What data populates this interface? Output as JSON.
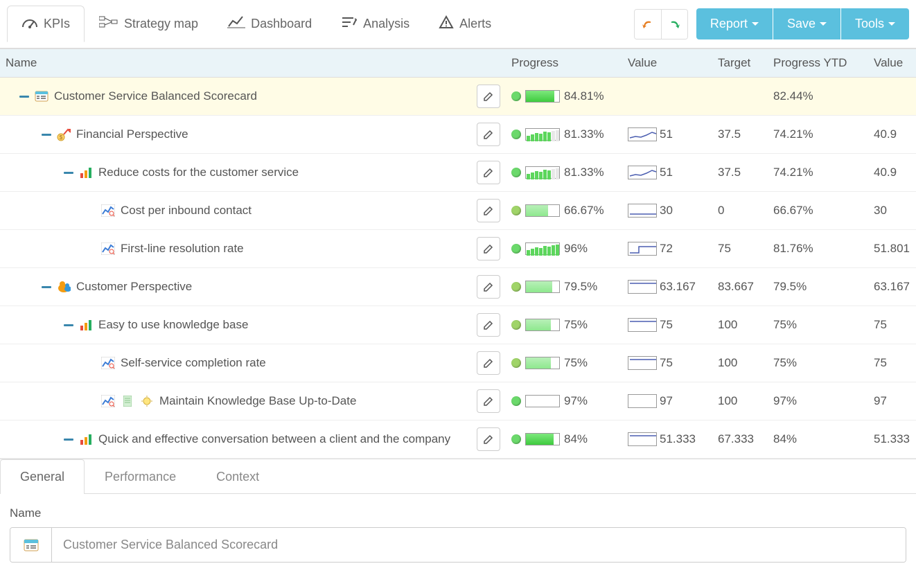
{
  "colors": {
    "accent": "#5bc0de",
    "header_bg": "#eaf4f8",
    "root_row_bg": "#fffce6",
    "status_green": "#4ad24a",
    "status_green_dot": "#6bd96b",
    "spark_line": "#4a5db0",
    "undo_arrow": "#e67e22",
    "redo_arrow": "#27ae60"
  },
  "toolbar": {
    "tabs": [
      {
        "label": "KPIs",
        "active": true
      },
      {
        "label": "Strategy map",
        "active": false
      },
      {
        "label": "Dashboard",
        "active": false
      },
      {
        "label": "Analysis",
        "active": false
      },
      {
        "label": "Alerts",
        "active": false
      }
    ],
    "actions": [
      "Report",
      "Save",
      "Tools"
    ]
  },
  "table": {
    "columns": [
      "Name",
      "",
      "Progress",
      "Value",
      "Target",
      "Progress YTD",
      "Value"
    ],
    "rows": [
      {
        "indent": 0,
        "icon": "scorecard",
        "collapsible": true,
        "root": true,
        "name": "Customer Service Balanced Scorecard",
        "progress": "84.81%",
        "progress_fill": 85,
        "dot": "#6bd96b",
        "bar_style": "solid",
        "value": "",
        "spark": "",
        "target": "",
        "ytd": "82.44%",
        "value2": ""
      },
      {
        "indent": 1,
        "icon": "perspective-finance",
        "collapsible": true,
        "name": "Financial Perspective",
        "progress": "81.33%",
        "progress_fill": 81,
        "dot": "#6bd96b",
        "bar_style": "bars",
        "value": "51",
        "spark": "line",
        "target": "37.5",
        "ytd": "74.21%",
        "value2": "40.9"
      },
      {
        "indent": 2,
        "icon": "goal",
        "collapsible": true,
        "name": "Reduce costs for the customer service",
        "progress": "81.33%",
        "progress_fill": 81,
        "dot": "#6bd96b",
        "bar_style": "bars",
        "value": "51",
        "spark": "line",
        "target": "37.5",
        "ytd": "74.21%",
        "value2": "40.9"
      },
      {
        "indent": 3,
        "icon": "kpi",
        "name": "Cost per inbound contact",
        "progress": "66.67%",
        "progress_fill": 67,
        "dot": "#a0d468",
        "bar_style": "solid-light",
        "value": "30",
        "spark": "flat",
        "target": "0",
        "ytd": "66.67%",
        "value2": "30"
      },
      {
        "indent": 3,
        "icon": "kpi",
        "name": "First-line resolution rate",
        "progress": "96%",
        "progress_fill": 96,
        "dot": "#6bd96b",
        "bar_style": "bars",
        "value": "72",
        "spark": "step",
        "target": "75",
        "ytd": "81.76%",
        "value2": "51.801"
      },
      {
        "indent": 1,
        "icon": "perspective-customer",
        "collapsible": true,
        "name": "Customer Perspective",
        "progress": "79.5%",
        "progress_fill": 80,
        "dot": "#a0d468",
        "bar_style": "solid-light",
        "value": "63.167",
        "spark": "flat-top",
        "target": "83.667",
        "ytd": "79.5%",
        "value2": "63.167"
      },
      {
        "indent": 2,
        "icon": "goal",
        "collapsible": true,
        "name": "Easy to use knowledge base",
        "progress": "75%",
        "progress_fill": 75,
        "dot": "#a0d468",
        "bar_style": "solid-light",
        "value": "75",
        "spark": "flat-top",
        "target": "100",
        "ytd": "75%",
        "value2": "75"
      },
      {
        "indent": 3,
        "icon": "kpi",
        "name": "Self-service completion rate",
        "progress": "75%",
        "progress_fill": 75,
        "dot": "#a0d468",
        "bar_style": "solid-light",
        "value": "75",
        "spark": "flat-top",
        "target": "100",
        "ytd": "75%",
        "value2": "75"
      },
      {
        "indent": 3,
        "icon": "kpi",
        "extras": [
          "doc",
          "bulb"
        ],
        "name": "Maintain Knowledge Base Up-to-Date",
        "progress": "97%",
        "progress_fill": 0,
        "dot": "#6bd96b",
        "bar_style": "empty",
        "value": "97",
        "spark": "empty",
        "target": "100",
        "ytd": "97%",
        "value2": "97"
      },
      {
        "indent": 2,
        "icon": "goal",
        "collapsible": true,
        "name": "Quick and effective conversation between a client and the company",
        "progress": "84%",
        "progress_fill": 84,
        "dot": "#6bd96b",
        "bar_style": "solid",
        "value": "51.333",
        "spark": "flat-top",
        "target": "67.333",
        "ytd": "84%",
        "value2": "51.333"
      }
    ]
  },
  "detail": {
    "tabs": [
      "General",
      "Performance",
      "Context"
    ],
    "active_tab": 0,
    "name_label": "Name",
    "name_value": "Customer Service Balanced Scorecard"
  }
}
